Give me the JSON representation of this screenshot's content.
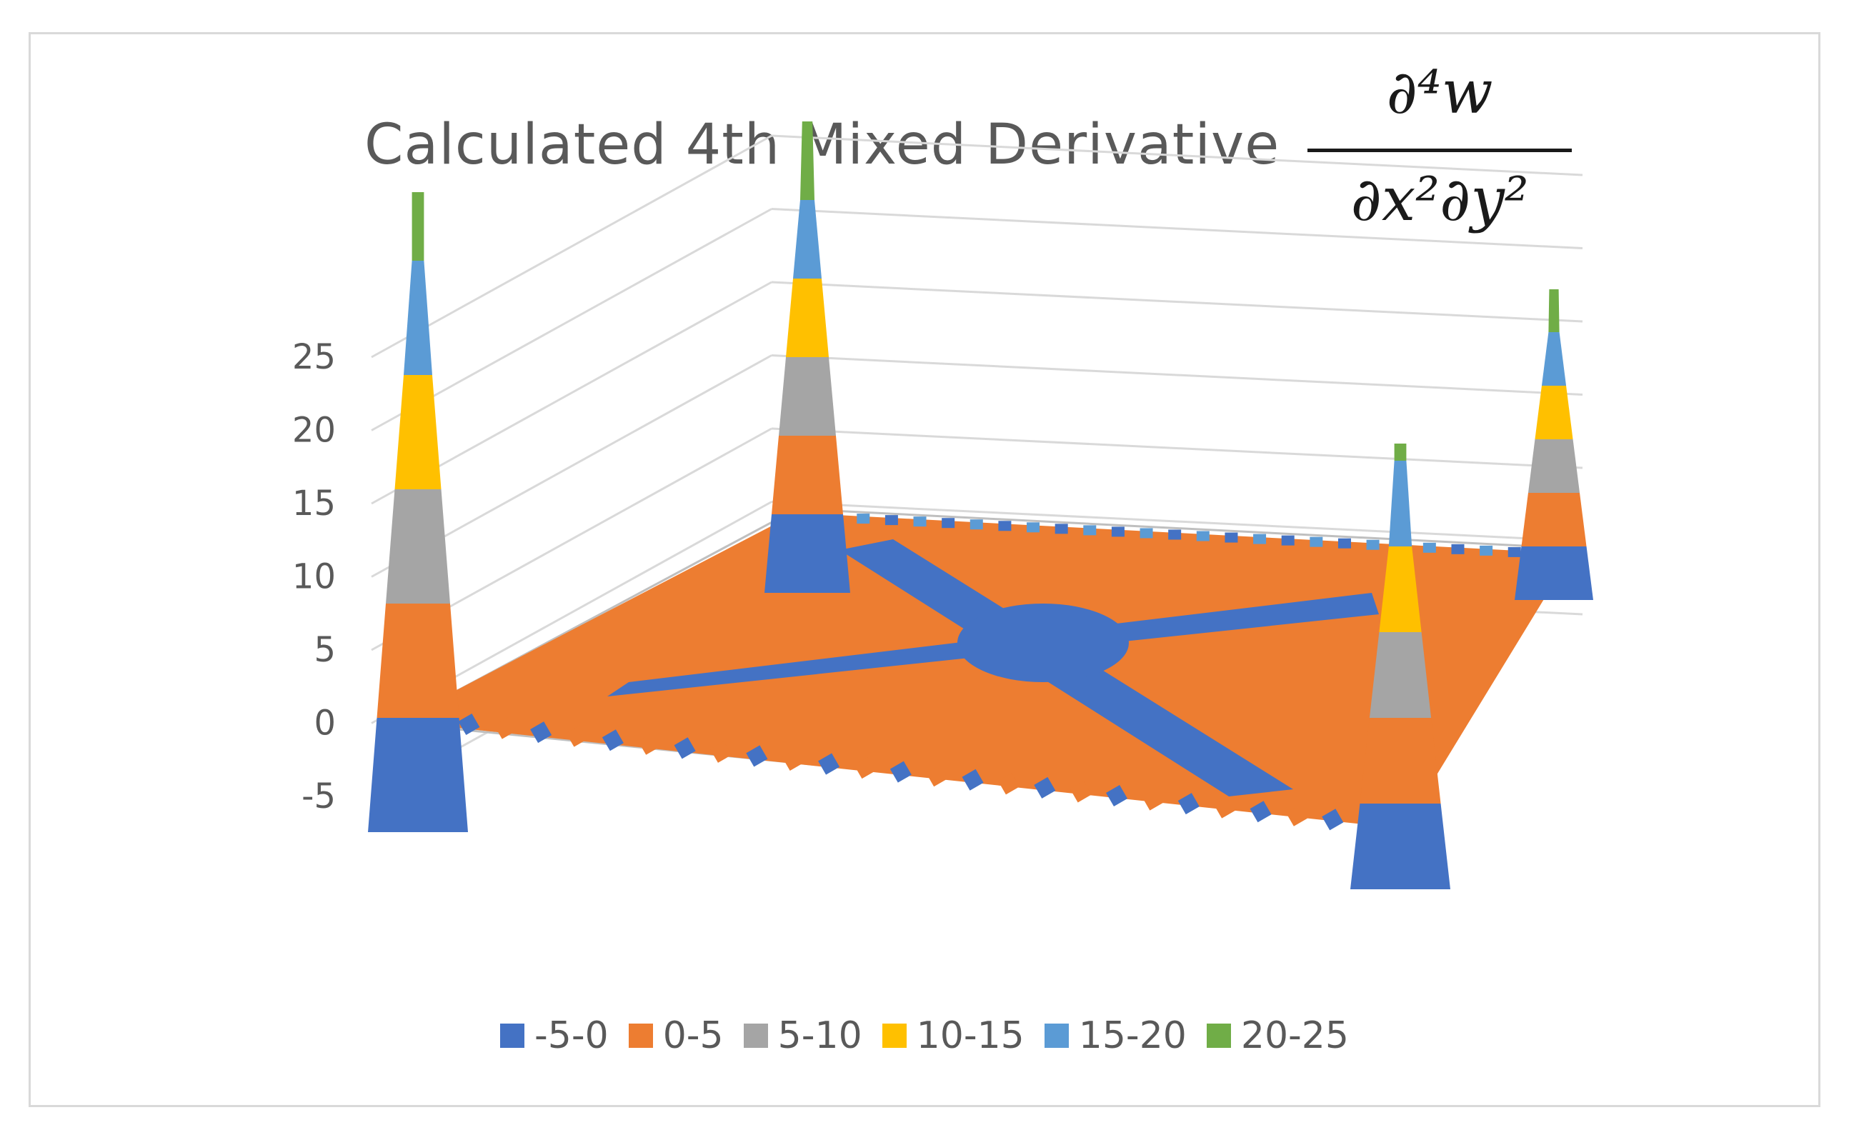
{
  "chart_data": {
    "type": "surface",
    "title": "Calculated 4th Mixed Derivative",
    "formula": {
      "numerator": "∂⁴w",
      "denominator": "∂x²∂y²"
    },
    "z_axis": {
      "ticks": [
        "25",
        "20",
        "15",
        "10",
        "5",
        "0",
        "-5"
      ],
      "tick_values": [
        25,
        20,
        15,
        10,
        5,
        0,
        -5
      ],
      "range": [
        -5,
        25
      ]
    },
    "legend": [
      {
        "label": "-5-0",
        "color": "#4472c4"
      },
      {
        "label": "0-5",
        "color": "#ed7d31"
      },
      {
        "label": "5-10",
        "color": "#a5a5a5"
      },
      {
        "label": "10-15",
        "color": "#ffc000"
      },
      {
        "label": "15-20",
        "color": "#5b9bd5"
      },
      {
        "label": "20-25",
        "color": "#70ad47"
      }
    ],
    "peaks": [
      {
        "corner": "left",
        "max_z": 23
      },
      {
        "corner": "back",
        "max_z": 25
      },
      {
        "corner": "front-right",
        "max_z": 21
      },
      {
        "corner": "right",
        "max_z": 24
      }
    ],
    "grid": true
  }
}
